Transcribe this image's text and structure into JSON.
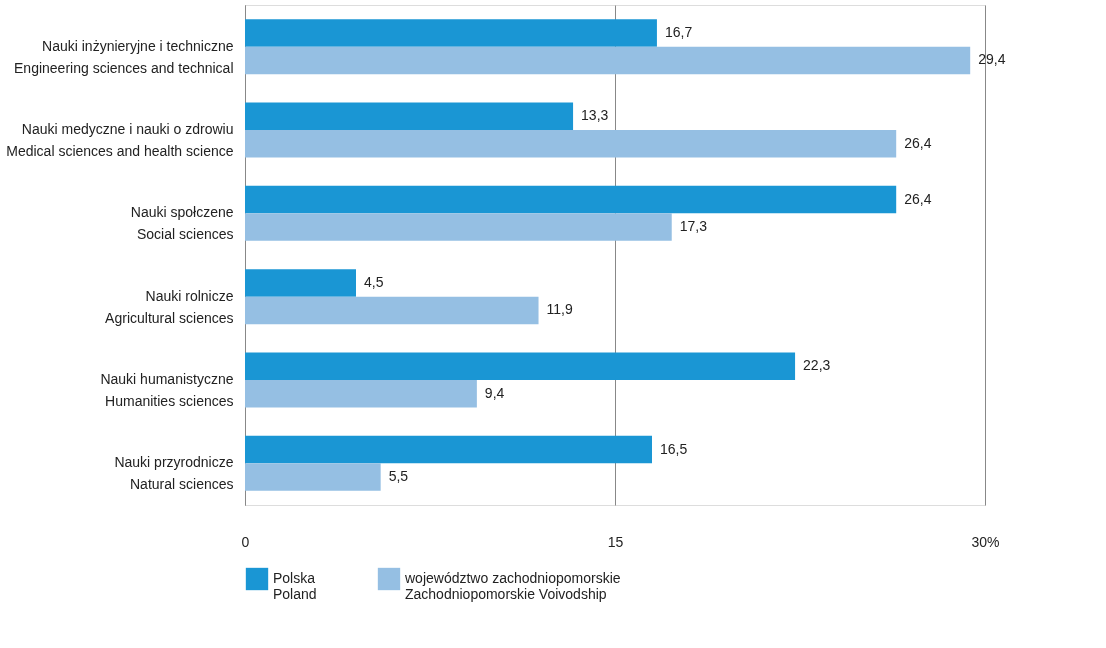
{
  "chart_data": {
    "type": "bar",
    "orientation": "horizontal",
    "categories": [
      "Nauki inżynieryjne i techniczne\nEngineering sciences and technical",
      "Nauki medyczne i nauki o zdrowiu\nMedical sciences and health science",
      "Nauki społczene\nSocial sciences",
      "Nauki rolnicze\nAgricultural sciences",
      "Nauki humanistyczne\nHumanities sciences",
      "Nauki przyrodnicze\nNatural sciences"
    ],
    "series": [
      {
        "name": "Polska\nPoland",
        "color": "#1a96d4",
        "values": [
          16.7,
          13.3,
          26.4,
          4.5,
          22.3,
          16.5
        ],
        "value_labels": [
          "16,7",
          "13,3",
          "26,4",
          "4,5",
          "22,3",
          "16,5"
        ]
      },
      {
        "name": "województwo zachodniopomorskie\nZachodniopomorskie Voivodship",
        "color": "#95bfe3",
        "values": [
          29.4,
          26.4,
          17.3,
          11.9,
          9.4,
          5.5
        ],
        "value_labels": [
          "29,4",
          "26,4",
          "17,3",
          "11,9",
          "9,4",
          "5,5"
        ]
      }
    ],
    "xlim": [
      0,
      30
    ],
    "xticks": [
      0,
      15,
      {
        "value": 30,
        "label": "30%"
      }
    ],
    "grid": "x",
    "legend": "bottom"
  }
}
